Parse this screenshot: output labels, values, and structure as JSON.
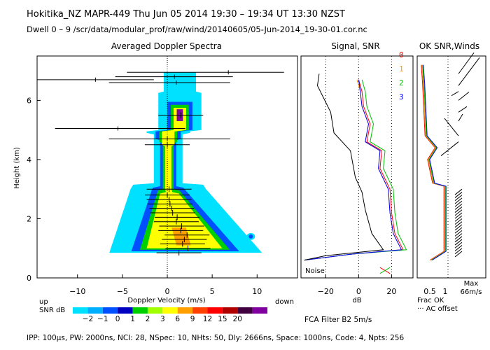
{
  "header": {
    "line1": "Hokitika_NZ   MAPR-449   Thu Jun 05 2014 19:30 – 19:34 UT 13:30 NZST",
    "line2": "Dwell  0 –  9   /scr/data/modular_prof/raw/wind/20140605/05-Jun-2014_19-30-01.cor.nc"
  },
  "footer": {
    "params": "IPP: 100μs,  PW: 2000ns,  NCI:  28,  NSpec: 10, NHts: 50,  Dly: 2666ns,  Space: 1000ns,  Code: 4,  Npts: 256",
    "filter": "FCA Filter B2   5m/s"
  },
  "chart_data": [
    {
      "type": "heatmap",
      "title": "Averaged Doppler Spectra",
      "xlabel": "Doppler Velocity (m/s)",
      "ylabel": "Height (km)",
      "x_ticks": [
        -10,
        -5,
        0,
        5,
        10
      ],
      "y_ticks": [
        0,
        2,
        4,
        6
      ],
      "xlim": [
        -14.5,
        14.5
      ],
      "ylim": [
        0,
        7.5
      ],
      "left_note": "up",
      "right_note": "down",
      "colorbar": {
        "label": "SNR dB",
        "ticks": [
          "−2",
          "−1",
          "0",
          "1",
          "2",
          "3",
          "6",
          "9",
          "12",
          "15",
          "20"
        ],
        "colors": [
          "#00e0ff",
          "#00b0ff",
          "#0050ff",
          "#0000c0",
          "#00d000",
          "#a0ff00",
          "#ffff00",
          "#ffa000",
          "#ff4000",
          "#ff0000",
          "#b00000",
          "#400040",
          "#8000a0"
        ]
      },
      "radial_velocity_profile": [
        [
          0.85,
          1.3
        ],
        [
          1.0,
          2.3
        ],
        [
          1.15,
          1.7
        ],
        [
          1.3,
          1.9
        ],
        [
          1.45,
          2.2
        ],
        [
          1.6,
          1.5
        ],
        [
          1.75,
          1.6
        ],
        [
          1.9,
          1.0
        ],
        [
          2.05,
          1.1
        ],
        [
          2.2,
          0.6
        ],
        [
          2.35,
          0.5
        ],
        [
          2.5,
          0.3
        ],
        [
          2.65,
          0.2
        ],
        [
          2.8,
          0.0
        ],
        [
          3.0,
          0.2
        ],
        [
          4.5,
          0.0
        ],
        [
          5.5,
          1.5
        ]
      ],
      "outliers": [
        {
          "height": 6.95,
          "vel": 6.8,
          "err_lo": -4.5,
          "err_hi": 13.0
        },
        {
          "height": 6.8,
          "vel": 0.8,
          "err_lo": -5.8,
          "err_hi": 7.3
        },
        {
          "height": 6.7,
          "vel": -8.0,
          "err_lo": -14.5,
          "err_hi": -1.5
        },
        {
          "height": 6.6,
          "vel": 1.0,
          "err_lo": -6.5,
          "err_hi": 7.0
        },
        {
          "height": 5.05,
          "vel": -5.5,
          "err_lo": -12.5,
          "err_hi": 2.0
        },
        {
          "height": 4.7,
          "vel": 0.0,
          "err_lo": -6.5,
          "err_hi": 7.0
        }
      ]
    },
    {
      "type": "line",
      "title": "Signal, SNR",
      "xlabel": "dB",
      "x_ticks": [
        -20,
        0,
        20
      ],
      "xlim": [
        -35,
        33
      ],
      "ylim": [
        0,
        7.5
      ],
      "noise_label": "Noise",
      "series": [
        {
          "name": "0",
          "color": "#ff0000",
          "points": [
            [
              -33,
              0.6
            ],
            [
              -5,
              0.8
            ],
            [
              27,
              0.95
            ],
            [
              22,
              1.5
            ],
            [
              20,
              2.2
            ],
            [
              19,
              3.0
            ],
            [
              13,
              3.7
            ],
            [
              14,
              4.3
            ],
            [
              5,
              4.6
            ],
            [
              7,
              5.2
            ],
            [
              3,
              5.8
            ],
            [
              2,
              6.3
            ],
            [
              0,
              6.7
            ]
          ]
        },
        {
          "name": "1",
          "color": "#ffa000",
          "points": [
            [
              -33,
              0.6
            ],
            [
              -5,
              0.8
            ],
            [
              26,
              0.95
            ],
            [
              21,
              1.5
            ],
            [
              19,
              2.2
            ],
            [
              18,
              3.0
            ],
            [
              12,
              3.7
            ],
            [
              13,
              4.3
            ],
            [
              4,
              4.6
            ],
            [
              6,
              5.2
            ],
            [
              2,
              5.8
            ],
            [
              1,
              6.3
            ],
            [
              -1,
              6.7
            ]
          ]
        },
        {
          "name": "2",
          "color": "#00c000",
          "points": [
            [
              -33,
              0.6
            ],
            [
              -5,
              0.8
            ],
            [
              29,
              0.95
            ],
            [
              24,
              1.5
            ],
            [
              22,
              2.2
            ],
            [
              21,
              3.0
            ],
            [
              15,
              3.7
            ],
            [
              16,
              4.3
            ],
            [
              7,
              4.6
            ],
            [
              9,
              5.2
            ],
            [
              5,
              5.8
            ],
            [
              4,
              6.3
            ],
            [
              2,
              6.7
            ]
          ]
        },
        {
          "name": "3",
          "color": "#0000ff",
          "points": [
            [
              -33,
              0.6
            ],
            [
              -5,
              0.8
            ],
            [
              26,
              0.95
            ],
            [
              21,
              1.5
            ],
            [
              19,
              2.2
            ],
            [
              18,
              3.0
            ],
            [
              12,
              3.7
            ],
            [
              13,
              4.3
            ],
            [
              4,
              4.6
            ],
            [
              6,
              5.2
            ],
            [
              2,
              5.8
            ],
            [
              1,
              6.3
            ],
            [
              0,
              6.7
            ]
          ]
        },
        {
          "name": "signal",
          "color": "#000000",
          "points": [
            [
              -33,
              0.6
            ],
            [
              -20,
              0.75
            ],
            [
              15,
              0.95
            ],
            [
              8,
              1.5
            ],
            [
              4,
              2.3
            ],
            [
              2,
              2.9
            ],
            [
              -2,
              3.4
            ],
            [
              -5,
              4.3
            ],
            [
              -15,
              4.9
            ],
            [
              -17,
              5.6
            ],
            [
              -25,
              6.5
            ],
            [
              -24,
              6.9
            ]
          ]
        }
      ]
    },
    {
      "type": "line",
      "title": "OK SNR,Winds",
      "legend": [
        "0",
        "1",
        "2",
        "3"
      ],
      "legend_colors": [
        "#ff0000",
        "#ffa000",
        "#00c000",
        "#0000ff"
      ],
      "x_ticks": [
        "0.5",
        "1"
      ],
      "xlabel": "Frac OK",
      "ac_offset_label": "··· AC offset",
      "wind_max_label": "Max",
      "wind_max_value": "66m/s"
    }
  ]
}
